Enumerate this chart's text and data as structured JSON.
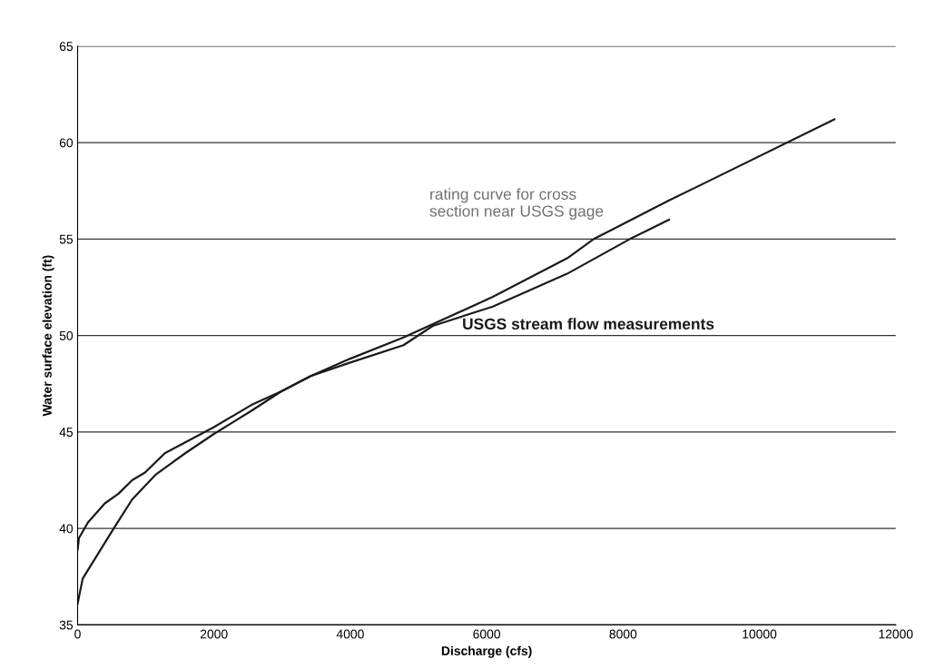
{
  "chart_data": {
    "type": "line",
    "xlabel": "Discharge (cfs)",
    "ylabel": "Water surface elevation (ft)",
    "xlim": [
      0,
      12000
    ],
    "xticks": [
      0,
      2000,
      4000,
      6000,
      8000,
      10000,
      12000
    ],
    "ylim": [
      35,
      65
    ],
    "yticks": [
      35,
      40,
      45,
      50,
      55,
      60,
      65
    ],
    "grid": "y",
    "legend": false,
    "marker": "none",
    "line_style": "solid",
    "series": [
      {
        "name": "rating curve for cross\nsection near USGS gage",
        "color": "#1a1a1a",
        "x": [
          0,
          75,
          180,
          530,
          800,
          1150,
          1580,
          2000,
          2550,
          2985,
          3420,
          4000,
          4780,
          6090,
          7180,
          7570,
          8675,
          11100
        ],
        "values": [
          36.1,
          37.4,
          38.0,
          40.0,
          41.5,
          42.8,
          43.9,
          44.9,
          46.1,
          47.1,
          47.9,
          48.8,
          49.9,
          52.0,
          54.0,
          55.0,
          57.0,
          61.2
        ]
      },
      {
        "name": "USGS stream flow measurements",
        "color": "#1a1a1a",
        "x": [
          0,
          20,
          150,
          400,
          600,
          800,
          990,
          1280,
          2000,
          2550,
          2985,
          3420,
          4000,
          4780,
          5210,
          6090,
          7180,
          8100,
          8675
        ],
        "values": [
          38.9,
          39.5,
          40.3,
          41.3,
          41.8,
          42.5,
          42.9,
          43.9,
          45.25,
          46.4,
          47.1,
          47.9,
          48.6,
          49.5,
          50.5,
          51.5,
          53.2,
          55.0,
          56.0
        ]
      }
    ]
  }
}
